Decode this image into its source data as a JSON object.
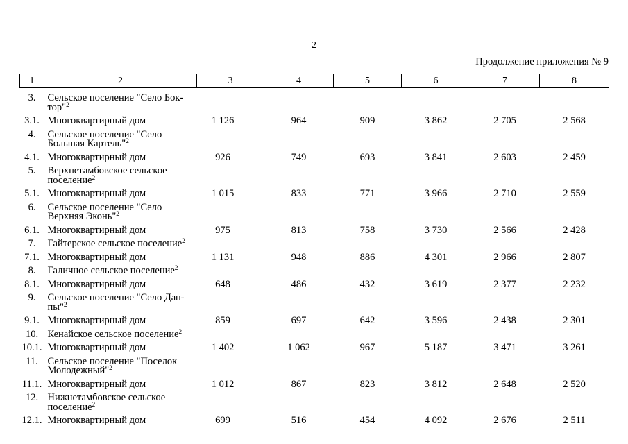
{
  "page": {
    "page_number": "2",
    "caption": "Продолжение приложения № 9"
  },
  "table": {
    "header_cols": [
      "1",
      "2",
      "3",
      "4",
      "5",
      "6",
      "7",
      "8"
    ],
    "rows": [
      {
        "num": "3.",
        "name_lines": [
          "Сельское поселение \"Село Бок-",
          "тор\""
        ],
        "superscript": "2",
        "values": [
          "",
          "",
          "",
          "",
          "",
          ""
        ]
      },
      {
        "num": "3.1.",
        "name_lines": [
          "Многоквартирный дом"
        ],
        "superscript": "",
        "values": [
          "1 126",
          "964",
          "909",
          "3 862",
          "2 705",
          "2 568"
        ]
      },
      {
        "num": "4.",
        "name_lines": [
          "Сельское поселение \"Село",
          "Большая Картель\""
        ],
        "superscript": "2",
        "values": [
          "",
          "",
          "",
          "",
          "",
          ""
        ]
      },
      {
        "num": "4.1.",
        "name_lines": [
          "Многоквартирный дом"
        ],
        "superscript": "",
        "values": [
          "926",
          "749",
          "693",
          "3 841",
          "2 603",
          "2 459"
        ]
      },
      {
        "num": "5.",
        "name_lines": [
          "Верхнетамбовское сельское",
          "поселение"
        ],
        "superscript": "2",
        "values": [
          "",
          "",
          "",
          "",
          "",
          ""
        ]
      },
      {
        "num": "5.1.",
        "name_lines": [
          "Многоквартирный дом"
        ],
        "superscript": "",
        "values": [
          "1 015",
          "833",
          "771",
          "3 966",
          "2 710",
          "2 559"
        ]
      },
      {
        "num": "6.",
        "name_lines": [
          "Сельское поселение \"Село",
          "Верхняя Эконь\""
        ],
        "superscript": "2",
        "values": [
          "",
          "",
          "",
          "",
          "",
          ""
        ]
      },
      {
        "num": "6.1.",
        "name_lines": [
          "Многоквартирный дом"
        ],
        "superscript": "",
        "values": [
          "975",
          "813",
          "758",
          "3 730",
          "2 566",
          "2 428"
        ]
      },
      {
        "num": "7.",
        "name_lines": [
          "Гайтерское сельское поселение"
        ],
        "superscript": "2",
        "values": [
          "",
          "",
          "",
          "",
          "",
          ""
        ]
      },
      {
        "num": "7.1.",
        "name_lines": [
          "Многоквартирный дом"
        ],
        "superscript": "",
        "values": [
          "1 131",
          "948",
          "886",
          "4 301",
          "2 966",
          "2 807"
        ]
      },
      {
        "num": "8.",
        "name_lines": [
          "Галичное сельское поселение"
        ],
        "superscript": "2",
        "values": [
          "",
          "",
          "",
          "",
          "",
          ""
        ]
      },
      {
        "num": "8.1.",
        "name_lines": [
          "Многоквартирный дом"
        ],
        "superscript": "",
        "values": [
          "648",
          "486",
          "432",
          "3 619",
          "2 377",
          "2 232"
        ]
      },
      {
        "num": "9.",
        "name_lines": [
          "Сельское поселение \"Село Дап-",
          "пы\""
        ],
        "superscript": "2",
        "values": [
          "",
          "",
          "",
          "",
          "",
          ""
        ]
      },
      {
        "num": "9.1.",
        "name_lines": [
          "Многоквартирный дом"
        ],
        "superscript": "",
        "values": [
          "859",
          "697",
          "642",
          "3 596",
          "2 438",
          "2 301"
        ]
      },
      {
        "num": "10.",
        "name_lines": [
          "Кенайское сельское поселение"
        ],
        "superscript": "2",
        "values": [
          "",
          "",
          "",
          "",
          "",
          ""
        ]
      },
      {
        "num": "10.1.",
        "name_lines": [
          "Многоквартирный дом"
        ],
        "superscript": "",
        "values": [
          "1 402",
          "1 062",
          "967",
          "5 187",
          "3 471",
          "3 261"
        ]
      },
      {
        "num": "11.",
        "name_lines": [
          "Сельское поселение \"Поселок",
          "Молодежный\""
        ],
        "superscript": "2",
        "values": [
          "",
          "",
          "",
          "",
          "",
          ""
        ]
      },
      {
        "num": "11.1.",
        "name_lines": [
          "Многоквартирный дом"
        ],
        "superscript": "",
        "values": [
          "1 012",
          "867",
          "823",
          "3 812",
          "2 648",
          "2 520"
        ]
      },
      {
        "num": "12.",
        "name_lines": [
          "Нижнетамбовское сельское",
          "поселение"
        ],
        "superscript": "2",
        "values": [
          "",
          "",
          "",
          "",
          "",
          ""
        ]
      },
      {
        "num": "12.1.",
        "name_lines": [
          "Многоквартирный дом"
        ],
        "superscript": "",
        "values": [
          "699",
          "516",
          "454",
          "4 092",
          "2 676",
          "2 511"
        ]
      }
    ]
  }
}
